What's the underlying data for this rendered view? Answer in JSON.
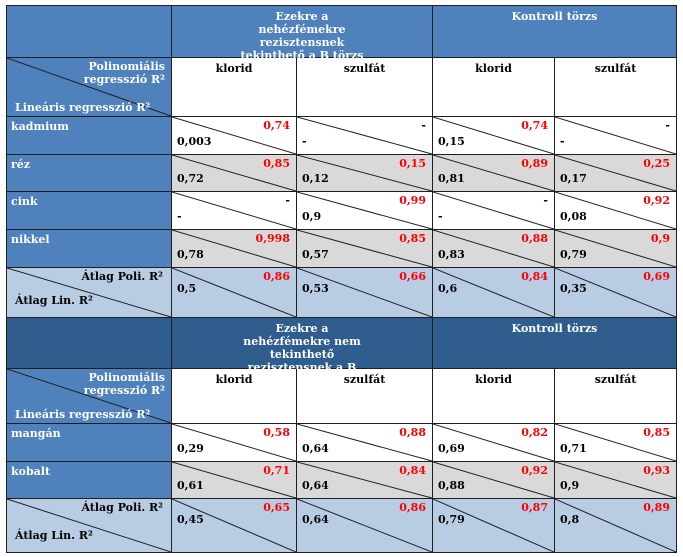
{
  "section1": {
    "header_left": "Ezekre a nehézfémekre rezisztensnek tekinthető a B törzs",
    "header_right": "Kontroll törzs",
    "corner_poly": "Polinomiális regresszió R²",
    "corner_lin": "Lineáris regresszió R²",
    "col_labels": [
      "klorid",
      "szulfát",
      "klorid",
      "szulfát"
    ],
    "rows": [
      {
        "label": "kadmium",
        "cells": [
          {
            "poly": "0,74",
            "lin": "0,003"
          },
          {
            "poly": "-",
            "lin": "-"
          },
          {
            "poly": "0,74",
            "lin": "0,15"
          },
          {
            "poly": "-",
            "lin": "-"
          }
        ]
      },
      {
        "label": "réz",
        "cells": [
          {
            "poly": "0,85",
            "lin": "0,72"
          },
          {
            "poly": "0,15",
            "lin": "0,12"
          },
          {
            "poly": "0,89",
            "lin": "0,81"
          },
          {
            "poly": "0,25",
            "lin": "0,17"
          }
        ]
      },
      {
        "label": "cink",
        "cells": [
          {
            "poly": "-",
            "lin": "-"
          },
          {
            "poly": "0,99",
            "lin": "0,9"
          },
          {
            "poly": "-",
            "lin": "-"
          },
          {
            "poly": "0,92",
            "lin": "0,08"
          }
        ]
      },
      {
        "label": "nikkel",
        "cells": [
          {
            "poly": "0,998",
            "lin": "0,78"
          },
          {
            "poly": "0,85",
            "lin": "0,57"
          },
          {
            "poly": "0,88",
            "lin": "0,83"
          },
          {
            "poly": "0,9",
            "lin": "0,79"
          }
        ]
      }
    ],
    "avg_poly_label": "Átlag Poli. R²",
    "avg_lin_label": "Átlag Lin. R²",
    "avg_cells": [
      {
        "poly": "0,86",
        "lin": "0,5"
      },
      {
        "poly": "0,66",
        "lin": "0,53"
      },
      {
        "poly": "0,84",
        "lin": "0,6"
      },
      {
        "poly": "0,69",
        "lin": "0,35"
      }
    ]
  },
  "section2": {
    "header_left": "Ezekre a nehézfémekre nem tekinthető rezisztensnek a B törzs",
    "header_right": "Kontroll törzs",
    "corner_poly": "Polinomiális regresszió R²",
    "corner_lin": "Lineáris regresszió R²",
    "col_labels": [
      "klorid",
      "szulfát",
      "klorid",
      "szulfát"
    ],
    "rows": [
      {
        "label": "mangán",
        "cells": [
          {
            "poly": "0,58",
            "lin": "0,29"
          },
          {
            "poly": "0,88",
            "lin": "0,64"
          },
          {
            "poly": "0,82",
            "lin": "0,69"
          },
          {
            "poly": "0,85",
            "lin": "0,71"
          }
        ]
      },
      {
        "label": "kobalt",
        "cells": [
          {
            "poly": "0,71",
            "lin": "0,61"
          },
          {
            "poly": "0,84",
            "lin": "0,64"
          },
          {
            "poly": "0,92",
            "lin": "0,88"
          },
          {
            "poly": "0,93",
            "lin": "0,9"
          }
        ]
      }
    ],
    "avg_poly_label": "Átlag Poli. R²",
    "avg_lin_label": "Átlag Lin. R²",
    "avg_cells": [
      {
        "poly": "0,65",
        "lin": "0,45"
      },
      {
        "poly": "0,86",
        "lin": "0,64"
      },
      {
        "poly": "0,87",
        "lin": "0,79"
      },
      {
        "poly": "0,89",
        "lin": "0,8"
      }
    ]
  }
}
